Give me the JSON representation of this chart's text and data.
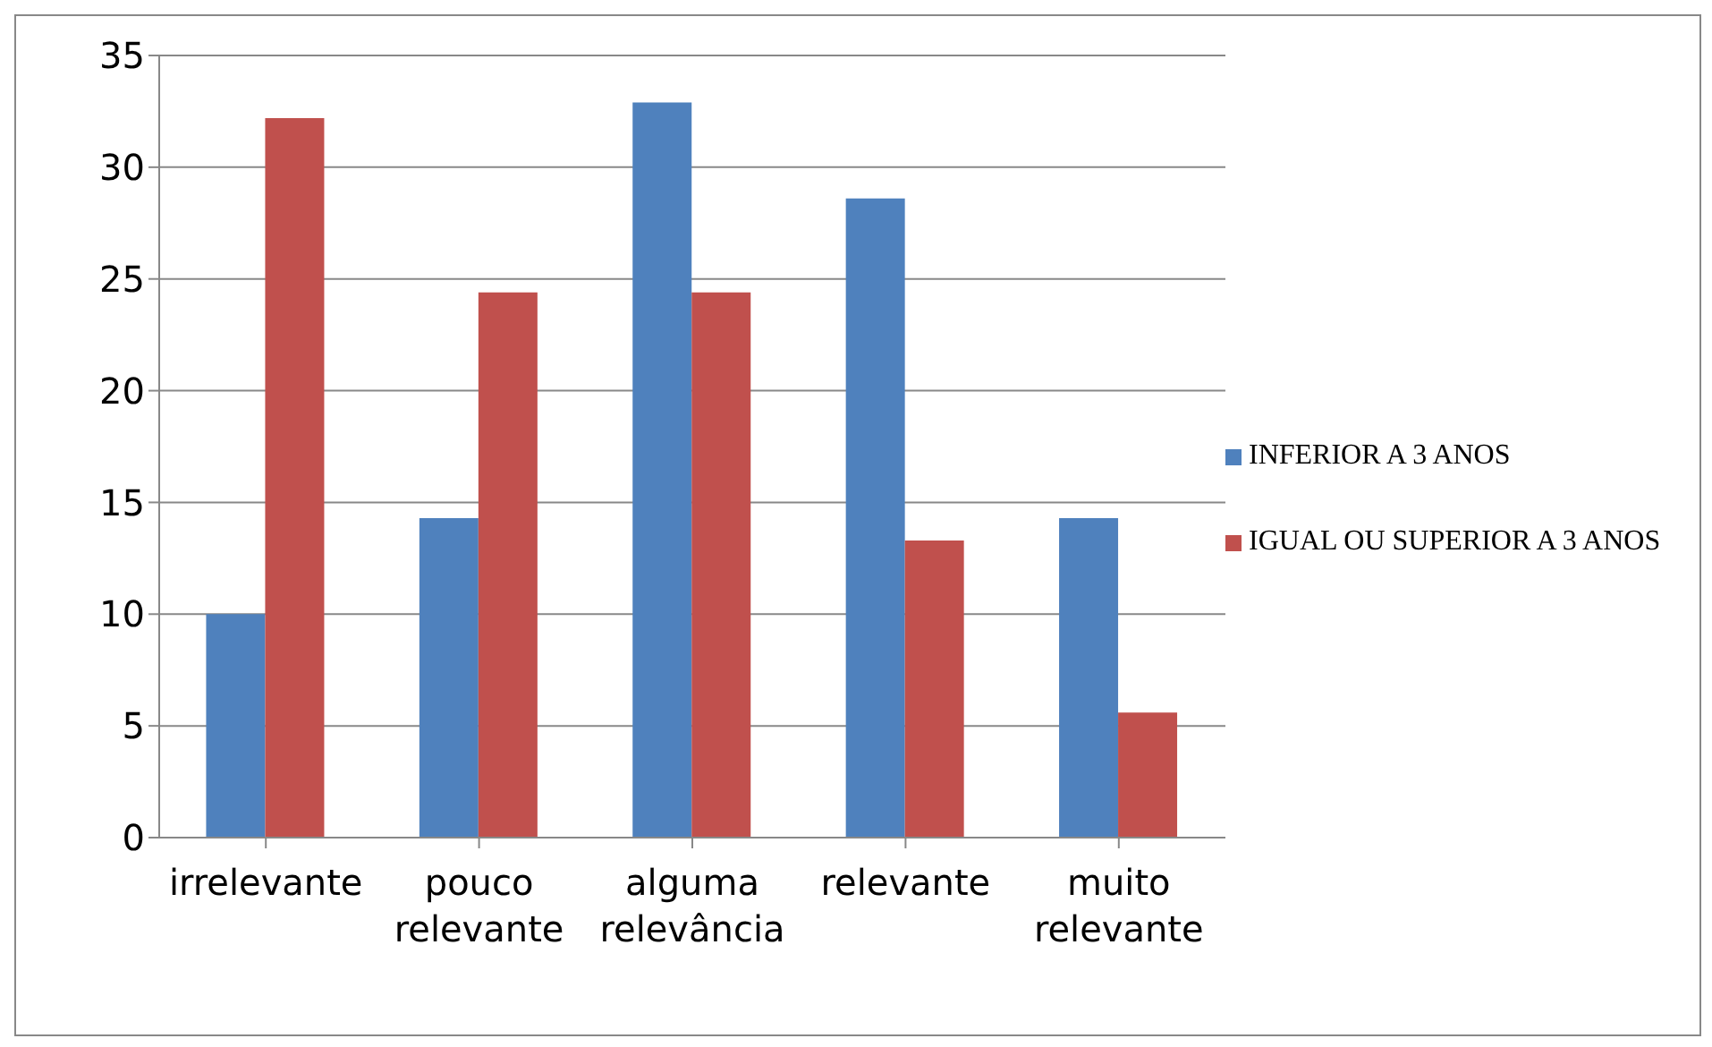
{
  "chart_data": {
    "type": "bar",
    "categories": [
      "irrelevante",
      "pouco relevante",
      "alguma relevância",
      "relevante",
      "muito relevante"
    ],
    "series": [
      {
        "name": "INFERIOR A 3 ANOS",
        "color": "#4f81bd",
        "values": [
          10,
          14.3,
          32.9,
          28.6,
          14.3
        ]
      },
      {
        "name": "IGUAL OU SUPERIOR A 3 ANOS",
        "color": "#c0504d",
        "values": [
          32.2,
          24.4,
          24.4,
          13.3,
          5.6
        ]
      }
    ],
    "ylim": [
      0,
      35
    ],
    "yticks": [
      0,
      5,
      10,
      15,
      20,
      25,
      30,
      35
    ],
    "grid": "y",
    "legend": "right"
  }
}
